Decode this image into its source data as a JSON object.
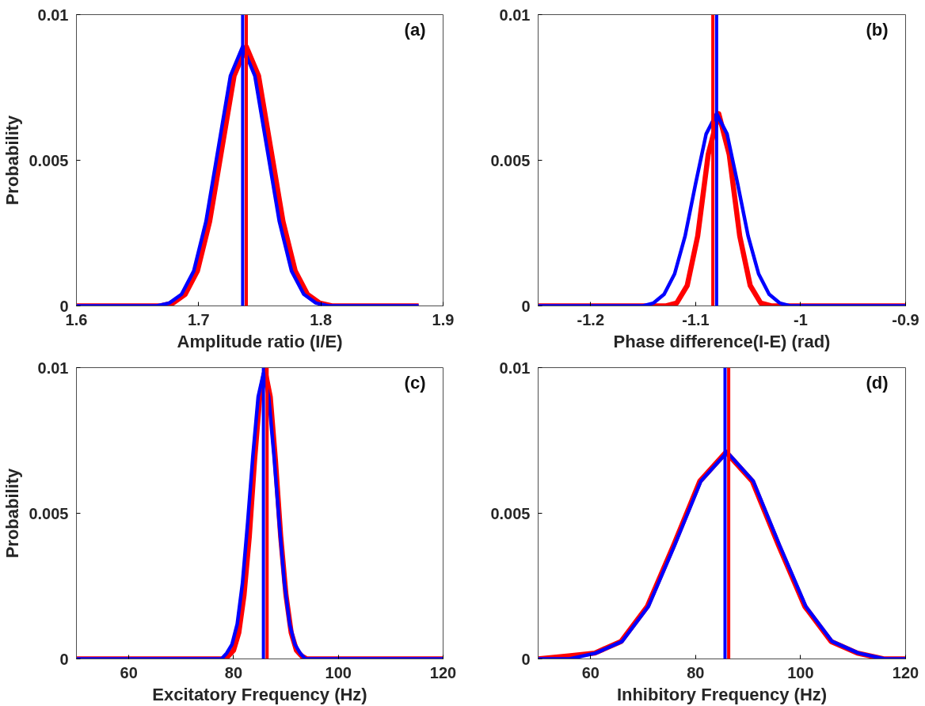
{
  "chart_data": [
    {
      "type": "line",
      "xlabel": "Amplitude ratio (I/E)",
      "ylabel": "Probability",
      "annotations": [
        "(a)"
      ],
      "xlim": [
        1.6,
        1.9
      ],
      "xticks": [
        1.6,
        1.7,
        1.8,
        1.9
      ],
      "ylim": [
        0,
        0.01
      ],
      "yticks": [
        0,
        0.005,
        0.01
      ],
      "grid": false,
      "line_style": "solid",
      "marker": "none",
      "series": [
        {
          "color": "#ff0000",
          "x": [
            1.6,
            1.659,
            1.669,
            1.679,
            1.689,
            1.699,
            1.709,
            1.719,
            1.729,
            1.739,
            1.749,
            1.759,
            1.769,
            1.779,
            1.789,
            1.799,
            1.809,
            1.819,
            1.88
          ],
          "values": [
            0,
            0,
            0,
            0.0001,
            0.0004,
            0.0012,
            0.0029,
            0.0054,
            0.0079,
            0.0089,
            0.0079,
            0.0054,
            0.0029,
            0.0012,
            0.0004,
            0.0001,
            0,
            0,
            0
          ]
        },
        {
          "color": "#0000ff",
          "x": [
            1.6,
            1.656,
            1.666,
            1.676,
            1.686,
            1.696,
            1.706,
            1.716,
            1.726,
            1.736,
            1.746,
            1.756,
            1.766,
            1.776,
            1.786,
            1.796,
            1.806,
            1.816,
            1.88
          ],
          "values": [
            0,
            0,
            0,
            0.0001,
            0.0004,
            0.0012,
            0.0029,
            0.0054,
            0.0079,
            0.0089,
            0.0079,
            0.0054,
            0.0029,
            0.0012,
            0.0004,
            0.0001,
            0,
            0,
            0
          ]
        }
      ],
      "ref_lines": [
        {
          "axis": "x",
          "value": 1.739,
          "color": "#ff0000"
        },
        {
          "axis": "x",
          "value": 1.736,
          "color": "#0000ff"
        }
      ]
    },
    {
      "type": "line",
      "xlabel": "Phase difference(I-E) (rad)",
      "annotations": [
        "(b)"
      ],
      "xlim": [
        -1.25,
        -0.9
      ],
      "xticks": [
        -1.2,
        -1.1,
        -1,
        -0.9
      ],
      "ylim": [
        0,
        0.01
      ],
      "yticks": [
        0,
        0.005,
        0.01
      ],
      "grid": false,
      "line_style": "solid",
      "marker": "none",
      "series": [
        {
          "color": "#ff0000",
          "x": [
            -1.25,
            -1.128,
            -1.118,
            -1.108,
            -1.098,
            -1.088,
            -1.078,
            -1.068,
            -1.058,
            -1.048,
            -1.038,
            -1.028,
            -0.9
          ],
          "values": [
            0,
            0,
            0.0001,
            0.0007,
            0.0024,
            0.0052,
            0.0066,
            0.0052,
            0.0024,
            0.0007,
            0.0001,
            0,
            0
          ]
        },
        {
          "color": "#0000ff",
          "x": [
            -1.25,
            -1.15,
            -1.14,
            -1.13,
            -1.12,
            -1.11,
            -1.1,
            -1.09,
            -1.08,
            -1.07,
            -1.06,
            -1.05,
            -1.04,
            -1.03,
            -1.02,
            -1.01,
            -0.9
          ],
          "values": [
            0,
            0,
            0.0001,
            0.0004,
            0.0011,
            0.0024,
            0.0042,
            0.0059,
            0.0066,
            0.0059,
            0.0042,
            0.0024,
            0.0011,
            0.0004,
            0.0001,
            0,
            0
          ]
        }
      ],
      "ref_lines": [
        {
          "axis": "x",
          "value": -1.0836,
          "color": "#ff0000"
        },
        {
          "axis": "x",
          "value": -1.08,
          "color": "#0000ff"
        }
      ]
    },
    {
      "type": "line",
      "xlabel": "Excitatory Frequency (Hz)",
      "ylabel": "Probability",
      "annotations": [
        "(c)"
      ],
      "xlim": [
        50,
        120
      ],
      "xticks": [
        60,
        80,
        100,
        120
      ],
      "ylim": [
        0,
        0.01
      ],
      "yticks": [
        0,
        0.005,
        0.01
      ],
      "grid": false,
      "line_style": "solid",
      "marker": "none",
      "series": [
        {
          "color": "#ff0000",
          "x": [
            50,
            78,
            79,
            80,
            81,
            82,
            83,
            84,
            85,
            86,
            87,
            88,
            89,
            90,
            91,
            92,
            93,
            94,
            120
          ],
          "values": [
            0,
            0,
            0.0001,
            0.0003,
            0.0009,
            0.0022,
            0.0042,
            0.0068,
            0.009,
            0.0099,
            0.009,
            0.0068,
            0.0042,
            0.0022,
            0.0009,
            0.0003,
            0.0001,
            0,
            0
          ]
        },
        {
          "color": "#0000ff",
          "x": [
            50,
            77.7,
            78.7,
            79.7,
            80.7,
            81.7,
            82.7,
            83.7,
            84.7,
            85.7,
            86.7,
            87.7,
            88.7,
            89.7,
            90.7,
            91.7,
            92.7,
            93.7,
            120
          ],
          "values": [
            0,
            0,
            0.0002,
            0.0005,
            0.0012,
            0.0026,
            0.0047,
            0.007,
            0.009,
            0.0098,
            0.009,
            0.007,
            0.0047,
            0.0026,
            0.0012,
            0.0005,
            0.0002,
            0,
            0
          ]
        }
      ],
      "ref_lines": [
        {
          "axis": "x",
          "value": 86.4,
          "color": "#ff0000"
        },
        {
          "axis": "x",
          "value": 85.7,
          "color": "#0000ff"
        }
      ]
    },
    {
      "type": "line",
      "xlabel": "Inhibitory Frequency (Hz)",
      "annotations": [
        "(d)"
      ],
      "xlim": [
        50,
        120
      ],
      "xticks": [
        60,
        80,
        100,
        120
      ],
      "ylim": [
        0,
        0.01
      ],
      "yticks": [
        0,
        0.005,
        0.01
      ],
      "grid": false,
      "line_style": "solid",
      "marker": "none",
      "series": [
        {
          "color": "#ff0000",
          "x": [
            50,
            55.8,
            60.8,
            65.8,
            70.8,
            75.8,
            80.8,
            85.8,
            90.8,
            95.8,
            100.8,
            105.8,
            110.8,
            115.8,
            120
          ],
          "values": [
            0,
            0.0001,
            0.0002,
            0.0006,
            0.0018,
            0.0039,
            0.0061,
            0.0071,
            0.0061,
            0.0039,
            0.0018,
            0.0006,
            0.0002,
            0,
            0
          ]
        },
        {
          "color": "#0000ff",
          "x": [
            50,
            56,
            61,
            66,
            71,
            76,
            81,
            86,
            91,
            96,
            101,
            106,
            111,
            116,
            120
          ],
          "values": [
            0,
            0,
            0.0002,
            0.0006,
            0.0018,
            0.0039,
            0.0061,
            0.0071,
            0.0061,
            0.0039,
            0.0018,
            0.0006,
            0.0002,
            0,
            0
          ]
        }
      ],
      "ref_lines": [
        {
          "axis": "x",
          "value": 86.3,
          "color": "#ff0000"
        },
        {
          "axis": "x",
          "value": 85.6,
          "color": "#0000ff"
        }
      ]
    }
  ]
}
